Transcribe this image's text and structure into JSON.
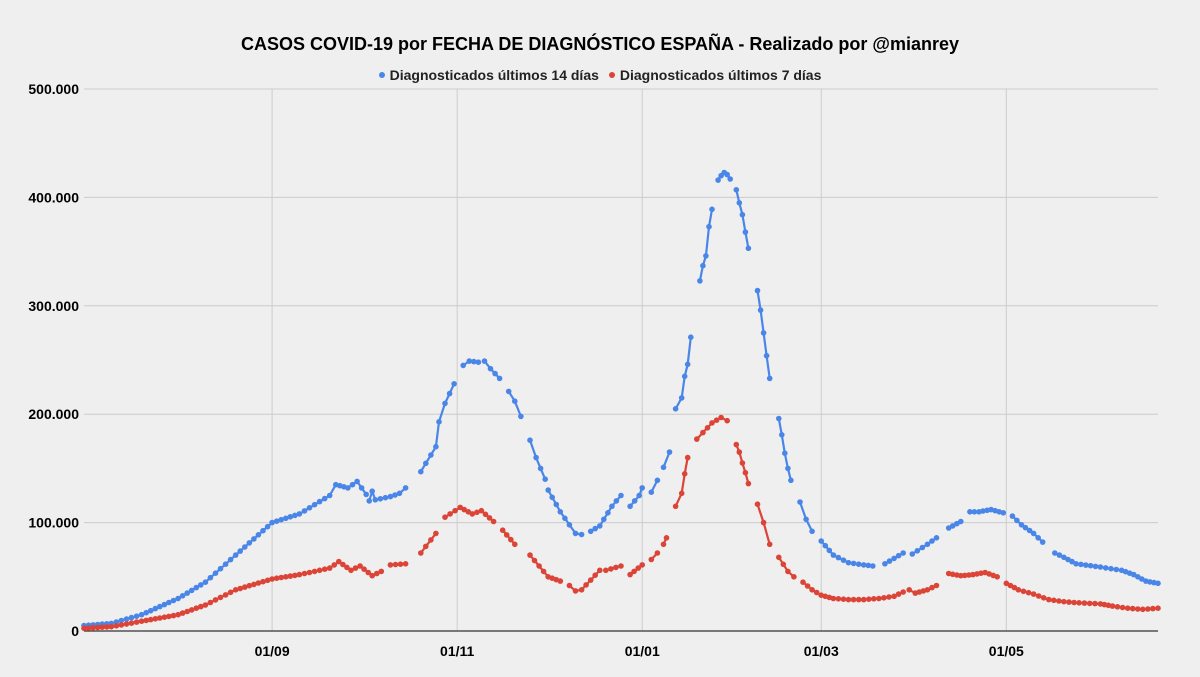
{
  "chart_data": {
    "type": "line",
    "title": "CASOS COVID-19 por FECHA DE DIAGNÓSTICO ESPAÑA - Realizado por @mianrey",
    "xlabel": "",
    "ylabel": "",
    "ylim": [
      0,
      500000
    ],
    "yticks": [
      {
        "value": 0,
        "label": "0"
      },
      {
        "value": 100000,
        "label": "100.000"
      },
      {
        "value": 200000,
        "label": "200.000"
      },
      {
        "value": 300000,
        "label": "300.000"
      },
      {
        "value": 400000,
        "label": "400.000"
      },
      {
        "value": 500000,
        "label": "500.000"
      }
    ],
    "xticks": [
      {
        "date": "2020-09-01",
        "label": "01/09"
      },
      {
        "date": "2020-11-01",
        "label": "01/11"
      },
      {
        "date": "2021-01-01",
        "label": "01/01"
      },
      {
        "date": "2021-03-01",
        "label": "01/03"
      },
      {
        "date": "2021-05-01",
        "label": "01/05"
      }
    ],
    "xlim": [
      "2020-07-01",
      "2021-06-20"
    ],
    "grid": true,
    "legend_position": "top",
    "series": [
      {
        "name": "Diagnosticados últimos 14 días",
        "color": "#4a86e8",
        "segments": [
          [
            [
              "2020-07-01",
              5000
            ],
            [
              "2020-07-10",
              7000
            ],
            [
              "2020-07-20",
              15000
            ],
            [
              "2020-08-01",
              30000
            ],
            [
              "2020-08-10",
              45000
            ],
            [
              "2020-08-20",
              70000
            ],
            [
              "2020-09-01",
              100000
            ],
            [
              "2020-09-10",
              108000
            ],
            [
              "2020-09-20",
              125000
            ],
            [
              "2020-09-22",
              135000
            ],
            [
              "2020-09-26",
              132000
            ],
            [
              "2020-09-29",
              138000
            ],
            [
              "2020-10-02",
              126000
            ]
          ],
          [
            [
              "2020-10-03",
              120000
            ],
            [
              "2020-10-04",
              129000
            ],
            [
              "2020-10-05",
              121000
            ],
            [
              "2020-10-10",
              124000
            ],
            [
              "2020-10-13",
              127000
            ],
            [
              "2020-10-15",
              132000
            ]
          ],
          [
            [
              "2020-10-20",
              147000
            ],
            [
              "2020-10-25",
              170000
            ],
            [
              "2020-10-26",
              193000
            ],
            [
              "2020-10-28",
              210000
            ],
            [
              "2020-10-31",
              228000
            ]
          ],
          [
            [
              "2020-11-03",
              245000
            ],
            [
              "2020-11-05",
              249000
            ],
            [
              "2020-11-08",
              248000
            ]
          ],
          [
            [
              "2020-11-10",
              249000
            ],
            [
              "2020-11-12",
              242000
            ],
            [
              "2020-11-15",
              233000
            ]
          ],
          [
            [
              "2020-11-18",
              221000
            ],
            [
              "2020-11-20",
              212000
            ],
            [
              "2020-11-22",
              198000
            ]
          ],
          [
            [
              "2020-11-25",
              176000
            ],
            [
              "2020-11-27",
              160000
            ],
            [
              "2020-11-30",
              140000
            ]
          ],
          [
            [
              "2020-12-01",
              130000
            ],
            [
              "2020-12-05",
              110000
            ],
            [
              "2020-12-08",
              98000
            ],
            [
              "2020-12-10",
              90000
            ],
            [
              "2020-12-12",
              89000
            ]
          ],
          [
            [
              "2020-12-15",
              92000
            ],
            [
              "2020-12-18",
              97000
            ],
            [
              "2020-12-22",
              115000
            ],
            [
              "2020-12-25",
              125000
            ]
          ],
          [
            [
              "2020-12-28",
              115000
            ],
            [
              "2020-12-31",
              125000
            ],
            [
              "2021-01-01",
              132000
            ]
          ],
          [
            [
              "2021-01-04",
              128000
            ],
            [
              "2021-01-06",
              139000
            ]
          ],
          [
            [
              "2021-01-08",
              151000
            ],
            [
              "2021-01-10",
              165000
            ]
          ],
          [
            [
              "2021-01-12",
              205000
            ],
            [
              "2021-01-14",
              215000
            ],
            [
              "2021-01-15",
              235000
            ],
            [
              "2021-01-16",
              246000
            ],
            [
              "2021-01-17",
              271000
            ]
          ],
          [
            [
              "2021-01-20",
              323000
            ],
            [
              "2021-01-21",
              337000
            ],
            [
              "2021-01-22",
              346000
            ],
            [
              "2021-01-23",
              373000
            ],
            [
              "2021-01-24",
              389000
            ]
          ],
          [
            [
              "2021-01-26",
              416000
            ],
            [
              "2021-01-27",
              420000
            ],
            [
              "2021-01-28",
              423000
            ],
            [
              "2021-01-29",
              421000
            ],
            [
              "2021-01-30",
              417000
            ]
          ],
          [
            [
              "2021-02-01",
              407000
            ],
            [
              "2021-02-02",
              395000
            ],
            [
              "2021-02-03",
              384000
            ],
            [
              "2021-02-04",
              368000
            ],
            [
              "2021-02-05",
              353000
            ]
          ],
          [
            [
              "2021-02-08",
              314000
            ],
            [
              "2021-02-09",
              296000
            ],
            [
              "2021-02-10",
              275000
            ],
            [
              "2021-02-11",
              254000
            ],
            [
              "2021-02-12",
              233000
            ]
          ],
          [
            [
              "2021-02-15",
              196000
            ],
            [
              "2021-02-16",
              181000
            ],
            [
              "2021-02-17",
              164000
            ],
            [
              "2021-02-18",
              150000
            ],
            [
              "2021-02-19",
              139000
            ]
          ],
          [
            [
              "2021-02-22",
              119000
            ],
            [
              "2021-02-24",
              103000
            ],
            [
              "2021-02-26",
              92000
            ]
          ],
          [
            [
              "2021-03-01",
              83000
            ],
            [
              "2021-03-05",
              70000
            ],
            [
              "2021-03-10",
              63000
            ],
            [
              "2021-03-15",
              61000
            ],
            [
              "2021-03-18",
              60000
            ]
          ],
          [
            [
              "2021-03-22",
              62000
            ],
            [
              "2021-03-25",
              67000
            ],
            [
              "2021-03-28",
              72000
            ]
          ],
          [
            [
              "2021-03-31",
              71000
            ],
            [
              "2021-04-05",
              80000
            ],
            [
              "2021-04-08",
              86000
            ]
          ],
          [
            [
              "2021-04-12",
              95000
            ],
            [
              "2021-04-16",
              101000
            ]
          ],
          [
            [
              "2021-04-19",
              110000
            ],
            [
              "2021-04-22",
              110000
            ],
            [
              "2021-04-26",
              112000
            ],
            [
              "2021-04-30",
              109000
            ]
          ],
          [
            [
              "2021-05-03",
              106000
            ],
            [
              "2021-05-06",
              98000
            ],
            [
              "2021-05-10",
              90000
            ],
            [
              "2021-05-13",
              82000
            ]
          ],
          [
            [
              "2021-05-17",
              72000
            ],
            [
              "2021-05-20",
              68000
            ],
            [
              "2021-05-24",
              62000
            ],
            [
              "2021-06-01",
              59000
            ],
            [
              "2021-06-08",
              56000
            ],
            [
              "2021-06-12",
              52000
            ],
            [
              "2021-06-16",
              46000
            ],
            [
              "2021-06-20",
              44000
            ]
          ]
        ]
      },
      {
        "name": "Diagnosticados últimos 7 días",
        "color": "#db4437",
        "segments": [
          [
            [
              "2020-07-01",
              2500
            ],
            [
              "2020-07-10",
              4000
            ],
            [
              "2020-07-20",
              9000
            ],
            [
              "2020-08-01",
              15000
            ],
            [
              "2020-08-10",
              24000
            ],
            [
              "2020-08-20",
              38000
            ],
            [
              "2020-09-01",
              48000
            ],
            [
              "2020-09-10",
              52000
            ],
            [
              "2020-09-20",
              58000
            ],
            [
              "2020-09-23",
              64000
            ],
            [
              "2020-09-27",
              56000
            ],
            [
              "2020-09-30",
              60000
            ],
            [
              "2020-10-04",
              51000
            ],
            [
              "2020-10-07",
              55000
            ]
          ],
          [
            [
              "2020-10-10",
              61000
            ],
            [
              "2020-10-15",
              62000
            ]
          ],
          [
            [
              "2020-10-20",
              72000
            ],
            [
              "2020-10-25",
              90000
            ]
          ],
          [
            [
              "2020-10-28",
              105000
            ],
            [
              "2020-11-02",
              114000
            ],
            [
              "2020-11-06",
              108000
            ],
            [
              "2020-11-09",
              111000
            ],
            [
              "2020-11-13",
              101000
            ]
          ],
          [
            [
              "2020-11-16",
              93000
            ],
            [
              "2020-11-20",
              80000
            ]
          ],
          [
            [
              "2020-11-25",
              70000
            ],
            [
              "2020-11-28",
              60000
            ],
            [
              "2020-12-01",
              50000
            ],
            [
              "2020-12-05",
              46000
            ]
          ],
          [
            [
              "2020-12-08",
              42000
            ],
            [
              "2020-12-10",
              37000
            ],
            [
              "2020-12-12",
              38000
            ],
            [
              "2020-12-15",
              47000
            ],
            [
              "2020-12-18",
              56000
            ]
          ],
          [
            [
              "2020-12-20",
              56000
            ],
            [
              "2020-12-25",
              60000
            ]
          ],
          [
            [
              "2020-12-28",
              52000
            ],
            [
              "2021-01-01",
              61000
            ]
          ],
          [
            [
              "2021-01-04",
              66000
            ],
            [
              "2021-01-06",
              72000
            ]
          ],
          [
            [
              "2021-01-08",
              80000
            ],
            [
              "2021-01-09",
              86000
            ]
          ],
          [
            [
              "2021-01-12",
              115000
            ],
            [
              "2021-01-14",
              127000
            ],
            [
              "2021-01-15",
              145000
            ],
            [
              "2021-01-16",
              160000
            ]
          ],
          [
            [
              "2021-01-19",
              177000
            ],
            [
              "2021-01-21",
              183000
            ],
            [
              "2021-01-24",
              192000
            ],
            [
              "2021-01-27",
              197000
            ],
            [
              "2021-01-29",
              194000
            ]
          ],
          [
            [
              "2021-02-01",
              172000
            ],
            [
              "2021-02-02",
              165000
            ],
            [
              "2021-02-03",
              155000
            ],
            [
              "2021-02-04",
              146000
            ],
            [
              "2021-02-05",
              136000
            ]
          ],
          [
            [
              "2021-02-08",
              117000
            ],
            [
              "2021-02-10",
              100000
            ],
            [
              "2021-02-12",
              80000
            ]
          ],
          [
            [
              "2021-02-15",
              68000
            ],
            [
              "2021-02-18",
              55000
            ],
            [
              "2021-02-20",
              50000
            ]
          ],
          [
            [
              "2021-02-23",
              45000
            ],
            [
              "2021-02-26",
              38000
            ],
            [
              "2021-03-01",
              33000
            ],
            [
              "2021-03-05",
              30000
            ],
            [
              "2021-03-10",
              29000
            ],
            [
              "2021-03-15",
              29000
            ],
            [
              "2021-03-20",
              30000
            ],
            [
              "2021-03-25",
              32000
            ],
            [
              "2021-03-28",
              36000
            ]
          ],
          [
            [
              "2021-03-30",
              38000
            ],
            [
              "2021-04-01",
              35000
            ],
            [
              "2021-04-05",
              38000
            ],
            [
              "2021-04-08",
              42000
            ]
          ],
          [
            [
              "2021-04-12",
              53000
            ],
            [
              "2021-04-16",
              51000
            ],
            [
              "2021-04-20",
              52000
            ],
            [
              "2021-04-24",
              54000
            ],
            [
              "2021-04-28",
              50000
            ]
          ],
          [
            [
              "2021-05-01",
              44000
            ],
            [
              "2021-05-05",
              38000
            ],
            [
              "2021-05-10",
              34000
            ],
            [
              "2021-05-15",
              29000
            ],
            [
              "2021-05-20",
              27000
            ],
            [
              "2021-05-25",
              26000
            ],
            [
              "2021-06-01",
              25000
            ],
            [
              "2021-06-05",
              23000
            ],
            [
              "2021-06-10",
              21000
            ],
            [
              "2021-06-15",
              20000
            ],
            [
              "2021-06-20",
              21000
            ]
          ]
        ]
      }
    ]
  }
}
